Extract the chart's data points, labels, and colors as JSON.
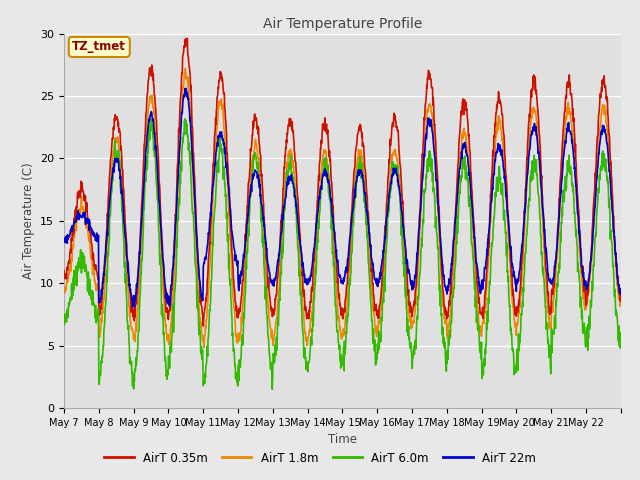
{
  "title": "Air Temperature Profile",
  "xlabel": "Time",
  "ylabel": "Air Temperature (C)",
  "ylim": [
    0,
    30
  ],
  "fig_bg_color": "#e8e8e8",
  "plot_bg_color": "#e0e0e0",
  "annotation_text": "TZ_tmet",
  "annotation_bg": "#ffffcc",
  "annotation_border": "#cc8800",
  "annotation_text_color": "#8b0000",
  "legend_labels": [
    "AirT 0.35m",
    "AirT 1.8m",
    "AirT 6.0m",
    "AirT 22m"
  ],
  "line_colors": [
    "#cc1100",
    "#ee8800",
    "#33bb00",
    "#0000cc"
  ],
  "x_tick_labels": [
    "May 7",
    "May 8",
    "May 9",
    "May 10",
    "May 11",
    "May 12",
    "May 13",
    "May 14",
    "May 15",
    "May 16",
    "May 17",
    "May 18",
    "May 19",
    "May 20",
    "May 21",
    "May 22"
  ],
  "n_days": 16,
  "pts_per_day": 96,
  "seed": 42
}
